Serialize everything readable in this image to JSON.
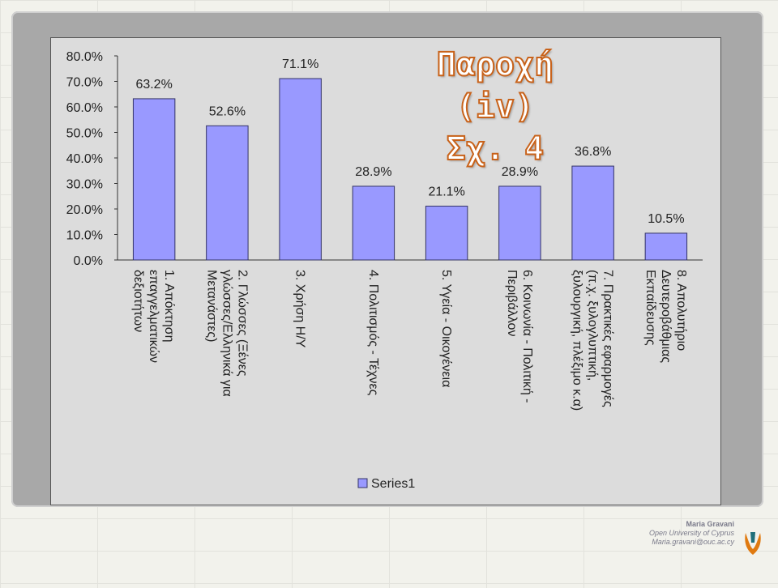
{
  "slide": {
    "title_line1": "Παροχή (iv)",
    "title_line2": "Σχ. 4"
  },
  "footer": {
    "name": "Maria Gravani",
    "org": "Open University of Cyprus",
    "email": "Maria.gravani@ouc.ac.cy"
  },
  "colors": {
    "bar_fill": "#9999ff",
    "bar_stroke": "#333366",
    "title_outline": "#c8621a",
    "plot_background": "#dcdcdc"
  },
  "chart_data": {
    "type": "bar",
    "categories": [
      [
        "1. Απόκτηση",
        "επαγγελματικών",
        "δεξιοτήτων"
      ],
      [
        "2. Γλώσσες (Ξένες",
        "γλώσσες/Ελληνικά για",
        "Μετανάστες)"
      ],
      [
        "3. Χρήση Η/Υ"
      ],
      [
        "4. Πολιτισμός  - Τέχνες"
      ],
      [
        "5. Υγεία - Οικογένεια"
      ],
      [
        "6. Κοινωνία - Πολιτική  -",
        "Περιβάλλον"
      ],
      [
        "7. Πρακτικές εφαρμογές",
        "(π.χ. ξυλογλυπτική,",
        "ξυλουργική, πλέξιμο κ.α)"
      ],
      [
        "8. Απολυτήριο",
        "Δευτεροβάθμιας",
        "Εκπαίδευσης"
      ]
    ],
    "series": [
      {
        "name": "Series1",
        "values": [
          63.2,
          52.6,
          71.1,
          28.9,
          21.1,
          28.9,
          36.8,
          10.5
        ],
        "labels": [
          "63.2%",
          "52.6%",
          "71.1%",
          "28.9%",
          "21.1%",
          "28.9%",
          "36.8%",
          "10.5%"
        ]
      }
    ],
    "yticks": [
      "0.0%",
      "10.0%",
      "20.0%",
      "30.0%",
      "40.0%",
      "50.0%",
      "60.0%",
      "70.0%",
      "80.0%"
    ],
    "ylim": [
      0,
      80
    ],
    "grid": false,
    "legend": "bottom-center"
  }
}
